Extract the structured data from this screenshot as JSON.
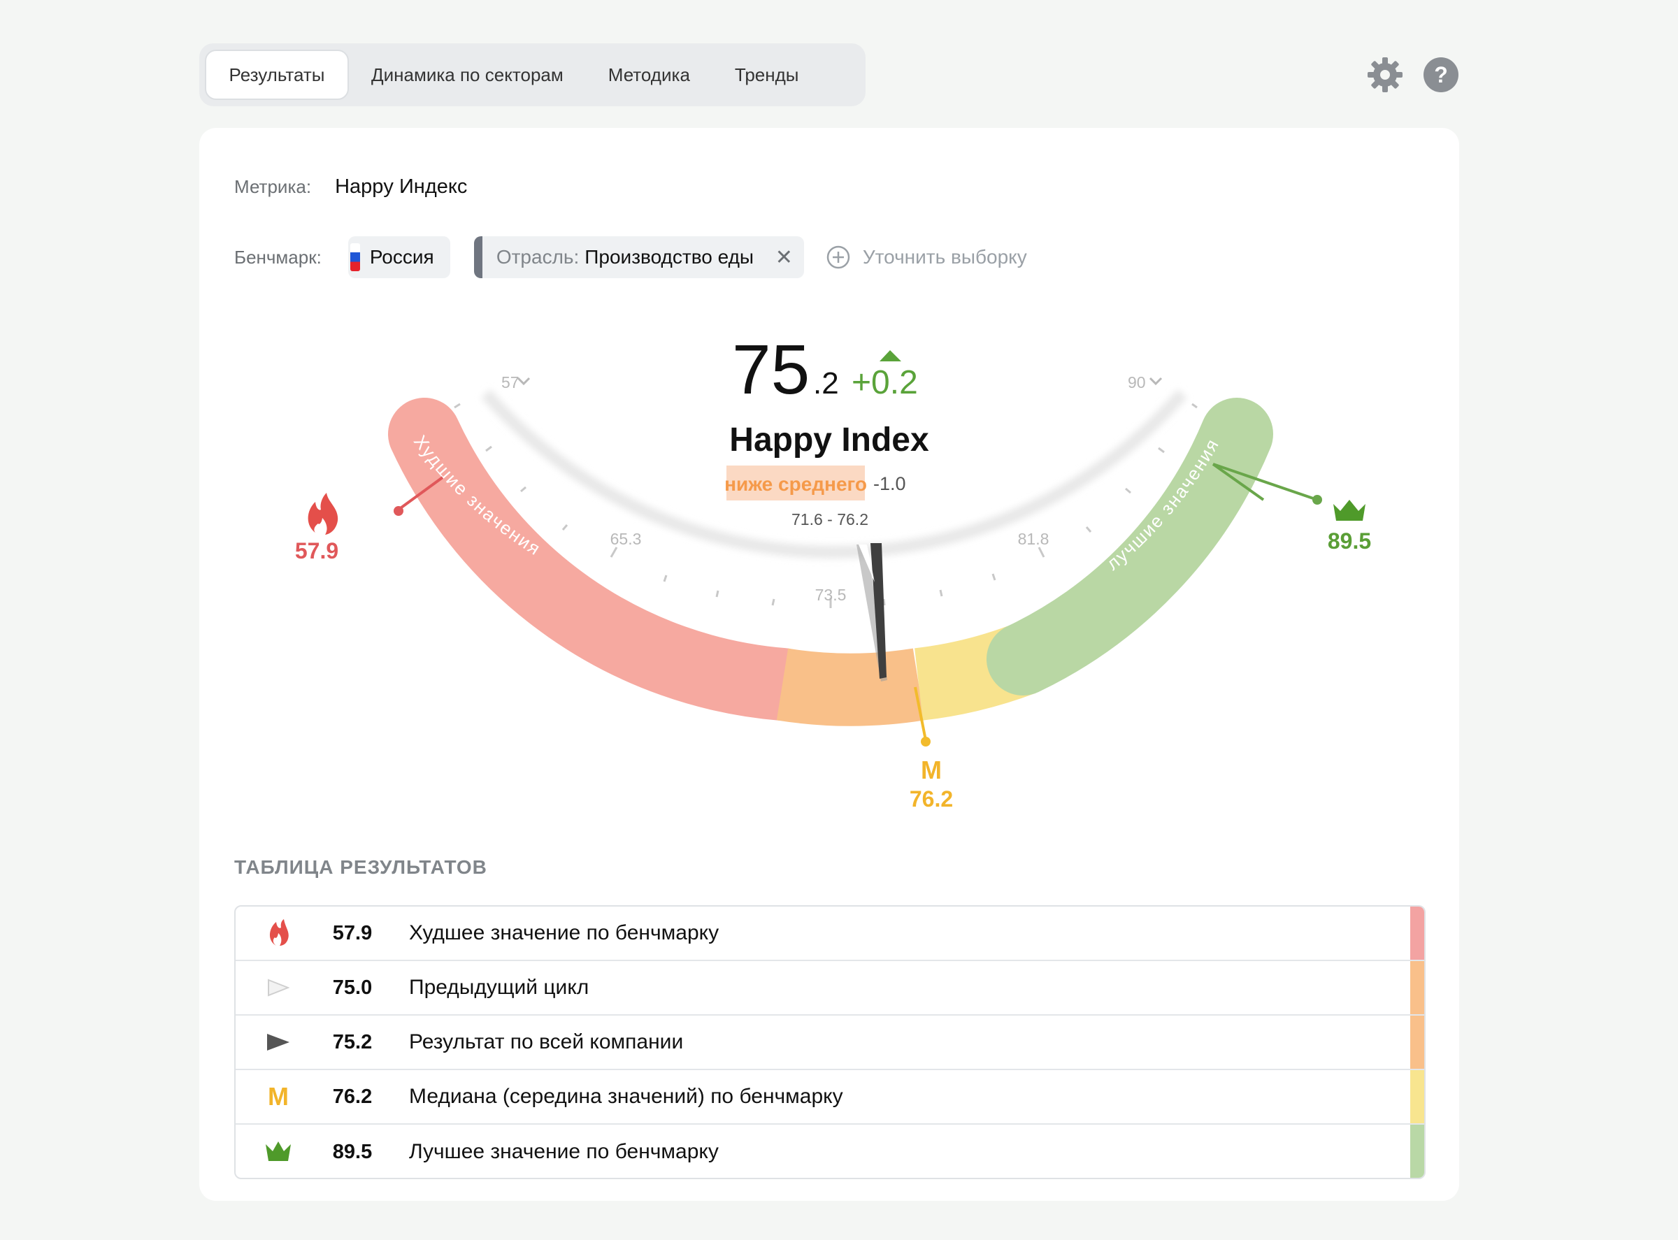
{
  "tabs": [
    {
      "label": "Результаты",
      "active": true
    },
    {
      "label": "Динамика по секторам",
      "active": false
    },
    {
      "label": "Методика",
      "active": false
    },
    {
      "label": "Тренды",
      "active": false
    }
  ],
  "top_icons": [
    "gear-icon",
    "help-icon"
  ],
  "metric": {
    "label": "Метрика:",
    "value": "Happy Индекс"
  },
  "benchmark": {
    "label": "Бенчмарк:",
    "country": "Россия",
    "industry_prefix": "Отрасль:",
    "industry_value": "Производство еды",
    "refine": "Уточнить выборку"
  },
  "gauge": {
    "score_int": "75",
    "score_dec": ".2",
    "delta": "+0.2",
    "title": "Happy Index",
    "rating": "ниже среднего",
    "rating_delta": "-1.0",
    "range": "71.6 - 76.2",
    "scale_min": "57",
    "scale_max": "90",
    "ticks": [
      "65.3",
      "73.5",
      "81.8"
    ],
    "worst_zone_label": "Худшие значения",
    "best_zone_label": "лучшие значения",
    "worst": "57.9",
    "best": "89.5",
    "median_letter": "M",
    "median": "76.2",
    "colors": {
      "worst": "#f6a9a0",
      "below": "#f9c089",
      "above": "#f8e38e",
      "best": "#b9d7a4"
    }
  },
  "table": {
    "title": "ТАБЛИЦА РЕЗУЛЬТАТОВ",
    "rows": [
      {
        "icon": "flame-icon",
        "value": "57.9",
        "label": "Худшее значение по бенчмарку",
        "color": "#f3a3a2"
      },
      {
        "icon": "previous-pointer-icon",
        "value": "75.0",
        "label": "Предыдущий цикл",
        "color": "#f9c08a"
      },
      {
        "icon": "company-pointer-icon",
        "value": "75.2",
        "label": "Результат по всей компании",
        "color": "#f9c08a"
      },
      {
        "icon": "median-icon",
        "value": "76.2",
        "label": "Медиана (середина значений) по бенчмарку",
        "color": "#f8e58f"
      },
      {
        "icon": "crown-icon",
        "value": "89.5",
        "label": "Лучшее значение по бенчмарку",
        "color": "#b9d8a6"
      }
    ]
  }
}
